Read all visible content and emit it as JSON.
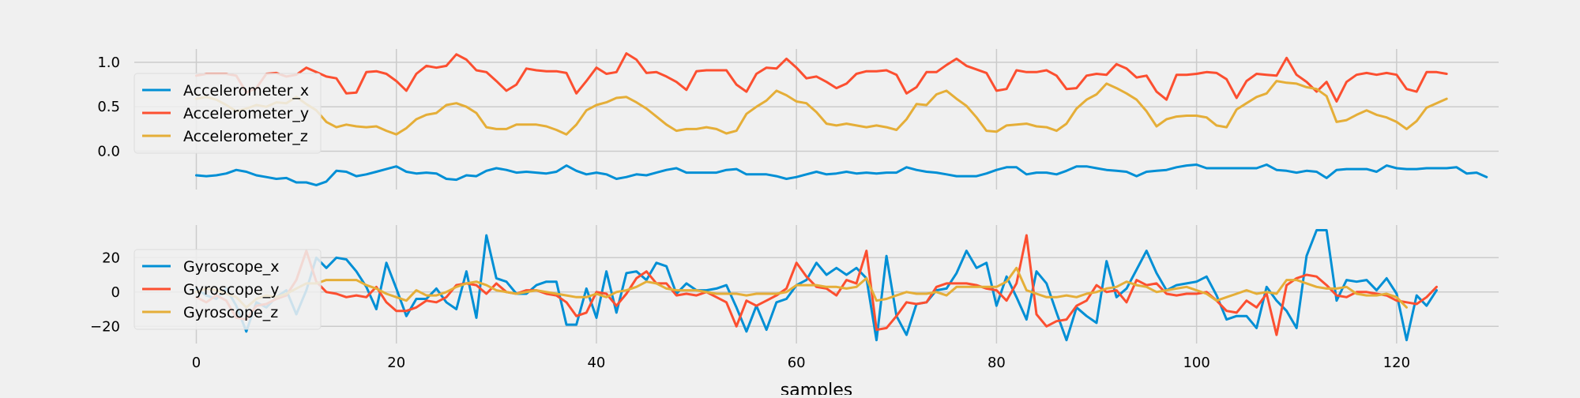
{
  "figure": {
    "background": "#f0f0f0",
    "grid_color": "#cbcbcb",
    "text_color": "#000000"
  },
  "chart_data": [
    {
      "type": "line",
      "title": "",
      "xlabel": "",
      "ylabel": "",
      "xlim": [
        -6.2,
        130.2
      ],
      "ylim": [
        -0.43,
        1.15
      ],
      "x_ticks": [
        0,
        20,
        40,
        60,
        80,
        100,
        120
      ],
      "y_ticks": [
        0.0,
        0.5,
        1.0
      ],
      "y_tick_labels": [
        "0.0",
        "0.5",
        "1.0"
      ],
      "show_x_tick_labels": false,
      "grid": true,
      "legend_position": "upper-left",
      "series": [
        {
          "name": "Accelerometer_x",
          "color": "#008fd5",
          "values": [
            -0.27,
            -0.28,
            -0.27,
            -0.25,
            -0.21,
            -0.23,
            -0.27,
            -0.29,
            -0.31,
            -0.3,
            -0.35,
            -0.35,
            -0.38,
            -0.34,
            -0.22,
            -0.23,
            -0.28,
            -0.26,
            -0.23,
            -0.2,
            -0.17,
            -0.23,
            -0.25,
            -0.24,
            -0.25,
            -0.31,
            -0.32,
            -0.27,
            -0.28,
            -0.22,
            -0.19,
            -0.21,
            -0.24,
            -0.23,
            -0.24,
            -0.25,
            -0.23,
            -0.16,
            -0.22,
            -0.26,
            -0.24,
            -0.26,
            -0.31,
            -0.29,
            -0.26,
            -0.27,
            -0.24,
            -0.21,
            -0.19,
            -0.24,
            -0.24,
            -0.24,
            -0.24,
            -0.21,
            -0.2,
            -0.26,
            -0.26,
            -0.26,
            -0.28,
            -0.31,
            -0.29,
            -0.26,
            -0.23,
            -0.26,
            -0.25,
            -0.23,
            -0.25,
            -0.24,
            -0.25,
            -0.24,
            -0.24,
            -0.18,
            -0.21,
            -0.23,
            -0.24,
            -0.26,
            -0.28,
            -0.28,
            -0.28,
            -0.25,
            -0.21,
            -0.18,
            -0.18,
            -0.26,
            -0.24,
            -0.24,
            -0.26,
            -0.22,
            -0.17,
            -0.17,
            -0.19,
            -0.21,
            -0.22,
            -0.23,
            -0.28,
            -0.23,
            -0.22,
            -0.21,
            -0.18,
            -0.16,
            -0.15,
            -0.19,
            -0.19,
            -0.19,
            -0.19,
            -0.19,
            -0.19,
            -0.15,
            -0.21,
            -0.22,
            -0.24,
            -0.22,
            -0.23,
            -0.3,
            -0.21,
            -0.2,
            -0.2,
            -0.2,
            -0.23,
            -0.16,
            -0.19,
            -0.2,
            -0.2,
            -0.19,
            -0.19,
            -0.19,
            -0.18,
            -0.25,
            -0.24,
            -0.29
          ]
        },
        {
          "name": "Accelerometer_y",
          "color": "#fc4f30",
          "values": [
            0.85,
            0.87,
            0.87,
            0.87,
            0.85,
            0.66,
            0.71,
            0.87,
            0.88,
            0.84,
            0.86,
            0.94,
            0.89,
            0.84,
            0.82,
            0.65,
            0.66,
            0.89,
            0.9,
            0.87,
            0.79,
            0.68,
            0.87,
            0.96,
            0.94,
            0.96,
            1.09,
            1.03,
            0.91,
            0.89,
            0.79,
            0.68,
            0.75,
            0.93,
            0.91,
            0.9,
            0.9,
            0.88,
            0.65,
            0.79,
            0.94,
            0.87,
            0.89,
            1.1,
            1.03,
            0.88,
            0.89,
            0.84,
            0.78,
            0.69,
            0.9,
            0.91,
            0.91,
            0.91,
            0.75,
            0.67,
            0.87,
            0.94,
            0.93,
            1.04,
            0.94,
            0.82,
            0.84,
            0.78,
            0.71,
            0.76,
            0.87,
            0.9,
            0.9,
            0.91,
            0.86,
            0.65,
            0.72,
            0.89,
            0.89,
            0.97,
            1.04,
            0.96,
            0.92,
            0.88,
            0.68,
            0.7,
            0.91,
            0.89,
            0.89,
            0.91,
            0.85,
            0.7,
            0.71,
            0.85,
            0.87,
            0.86,
            0.98,
            0.93,
            0.83,
            0.85,
            0.67,
            0.58,
            0.86,
            0.86,
            0.87,
            0.89,
            0.88,
            0.81,
            0.6,
            0.79,
            0.87,
            0.86,
            0.85,
            1.05,
            0.86,
            0.78,
            0.67,
            0.78,
            0.56,
            0.78,
            0.86,
            0.88,
            0.86,
            0.88,
            0.86,
            0.7,
            0.67,
            0.89,
            0.89,
            0.87
          ]
        },
        {
          "name": "Accelerometer_z",
          "color": "#e5ae38",
          "values": [
            0.59,
            0.61,
            0.58,
            0.52,
            0.45,
            0.48,
            0.52,
            0.5,
            0.55,
            0.54,
            0.61,
            0.53,
            0.46,
            0.33,
            0.27,
            0.3,
            0.28,
            0.27,
            0.28,
            0.23,
            0.19,
            0.26,
            0.36,
            0.41,
            0.43,
            0.52,
            0.54,
            0.5,
            0.43,
            0.27,
            0.25,
            0.25,
            0.3,
            0.3,
            0.3,
            0.28,
            0.24,
            0.19,
            0.3,
            0.46,
            0.52,
            0.55,
            0.6,
            0.61,
            0.55,
            0.48,
            0.39,
            0.3,
            0.23,
            0.25,
            0.25,
            0.27,
            0.25,
            0.2,
            0.23,
            0.42,
            0.5,
            0.57,
            0.68,
            0.63,
            0.56,
            0.54,
            0.44,
            0.31,
            0.29,
            0.31,
            0.29,
            0.27,
            0.29,
            0.27,
            0.24,
            0.36,
            0.53,
            0.52,
            0.64,
            0.68,
            0.59,
            0.51,
            0.38,
            0.23,
            0.22,
            0.29,
            0.3,
            0.31,
            0.28,
            0.27,
            0.23,
            0.31,
            0.48,
            0.58,
            0.64,
            0.76,
            0.71,
            0.65,
            0.58,
            0.45,
            0.28,
            0.36,
            0.39,
            0.4,
            0.4,
            0.38,
            0.29,
            0.27,
            0.47,
            0.54,
            0.61,
            0.65,
            0.79,
            0.77,
            0.76,
            0.72,
            0.7,
            0.62,
            0.33,
            0.35,
            0.41,
            0.46,
            0.41,
            0.38,
            0.33,
            0.25,
            0.34,
            0.49,
            0.54,
            0.59
          ]
        }
      ]
    },
    {
      "type": "line",
      "title": "",
      "xlabel": "samples",
      "ylabel": "",
      "xlim": [
        -6.2,
        130.2
      ],
      "ylim": [
        -30,
        39
      ],
      "x_ticks": [
        0,
        20,
        40,
        60,
        80,
        100,
        120
      ],
      "x_tick_labels": [
        "0",
        "20",
        "40",
        "60",
        "80",
        "100",
        "120"
      ],
      "y_ticks": [
        -20,
        0,
        20
      ],
      "y_tick_labels": [
        "−20",
        "0",
        "20"
      ],
      "grid": true,
      "legend_position": "upper-left",
      "series": [
        {
          "name": "Gyroscope_x",
          "color": "#008fd5",
          "values": [
            2,
            -2,
            -4,
            2,
            -8,
            -23,
            -6,
            -9,
            -3,
            1,
            -13,
            1,
            20,
            14,
            20,
            19,
            12,
            3,
            -10,
            17,
            2,
            -14,
            -4,
            -4,
            2,
            -6,
            -10,
            12,
            -15,
            33,
            8,
            6,
            -1,
            -1,
            4,
            6,
            6,
            -19,
            -19,
            2,
            -15,
            12,
            -12,
            11,
            12,
            7,
            17,
            15,
            -1,
            5,
            1,
            1,
            2,
            4,
            -9,
            -23,
            -8,
            -22,
            -6,
            -4,
            4,
            7,
            17,
            10,
            14,
            10,
            14,
            8,
            -28,
            21,
            -14,
            -25,
            -7,
            -6,
            1,
            2,
            11,
            24,
            14,
            17,
            -8,
            9,
            -3,
            -16,
            12,
            5,
            -12,
            -28,
            -9,
            -14,
            -18,
            18,
            -3,
            2,
            13,
            24,
            11,
            1,
            4,
            5,
            6,
            9,
            -2,
            -16,
            -14,
            -14,
            -21,
            3,
            -5,
            -11,
            -21,
            21,
            36,
            36,
            -5,
            7,
            6,
            7,
            1,
            8,
            -1,
            -28,
            -2,
            -8,
            1
          ]
        },
        {
          "name": "Gyroscope_y",
          "color": "#fc4f30",
          "values": [
            -3,
            -6,
            -2,
            -5,
            -15,
            -16,
            -8,
            -7,
            -4,
            -2,
            7,
            24,
            6,
            0,
            -1,
            -3,
            -2,
            -3,
            3,
            -6,
            -11,
            -11,
            -9,
            -5,
            -6,
            -3,
            4,
            5,
            4,
            -1,
            5,
            0,
            -1,
            1,
            1,
            -1,
            -2,
            -6,
            -14,
            -12,
            0,
            -1,
            -8,
            -1,
            8,
            12,
            5,
            5,
            -2,
            -1,
            -2,
            0,
            -3,
            -6,
            -20,
            -5,
            -8,
            -5,
            -2,
            2,
            17,
            9,
            3,
            2,
            -2,
            7,
            5,
            24,
            -22,
            -21,
            -14,
            -6,
            -7,
            -6,
            3,
            5,
            5,
            5,
            4,
            2,
            1,
            -5,
            5,
            33,
            -13,
            -20,
            -17,
            -16,
            -8,
            -5,
            4,
            0,
            1,
            -6,
            7,
            4,
            5,
            -1,
            -2,
            -1,
            -1,
            0,
            -5,
            -11,
            -12,
            -5,
            -9,
            -1,
            -25,
            4,
            8,
            10,
            9,
            4,
            -2,
            -3,
            0,
            0,
            -1,
            -2,
            -5,
            -6,
            -7,
            -3,
            3
          ]
        },
        {
          "name": "Gyroscope_z",
          "color": "#e5ae38",
          "values": [
            0,
            2,
            1,
            -1,
            -3,
            -9,
            -4,
            -2,
            -3,
            -1,
            2,
            5,
            5,
            7,
            7,
            7,
            7,
            4,
            2,
            -1,
            -3,
            -5,
            1,
            -2,
            -2,
            0,
            3,
            5,
            6,
            4,
            1,
            0,
            -1,
            0,
            1,
            0,
            -1,
            -2,
            -3,
            -3,
            -1,
            -3,
            0,
            1,
            3,
            6,
            5,
            2,
            1,
            1,
            1,
            0,
            -1,
            -1,
            -1,
            -2,
            -1,
            -1,
            -1,
            0,
            4,
            4,
            4,
            3,
            3,
            2,
            3,
            8,
            -5,
            -4,
            -2,
            0,
            -1,
            -1,
            0,
            -2,
            3,
            3,
            3,
            3,
            3,
            6,
            14,
            1,
            -1,
            -3,
            -3,
            -2,
            -3,
            -1,
            0,
            2,
            3,
            6,
            4,
            3,
            0,
            1,
            2,
            3,
            1,
            -1,
            -5,
            -3,
            -1,
            1,
            -1,
            0,
            -1,
            7,
            7,
            5,
            3,
            2,
            2,
            3,
            -1,
            -2,
            -2,
            -1,
            -3,
            -9
          ]
        }
      ]
    }
  ]
}
